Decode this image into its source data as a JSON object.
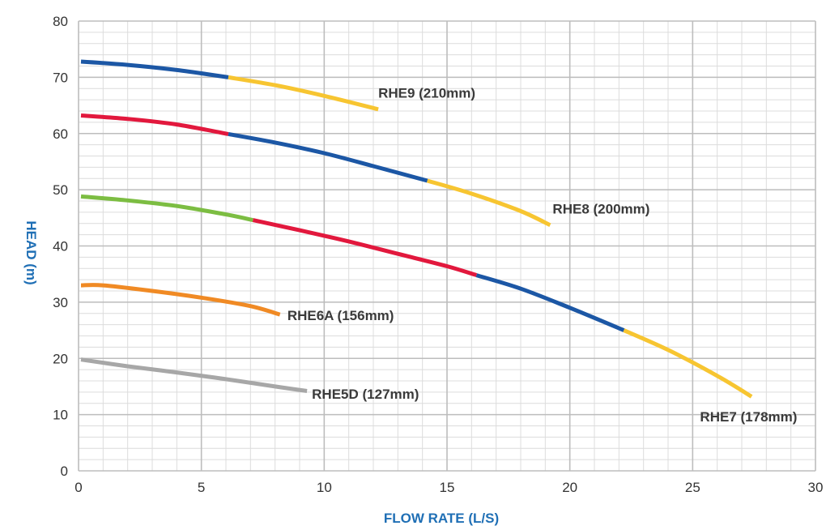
{
  "chart_data": {
    "type": "line",
    "xlabel": "FLOW RATE (L/S)",
    "ylabel": "HEAD (m)",
    "xlim": [
      0,
      30
    ],
    "ylim": [
      0,
      80
    ],
    "x_ticks": [
      0,
      5,
      10,
      15,
      20,
      25,
      30
    ],
    "y_ticks": [
      0,
      10,
      20,
      30,
      40,
      50,
      60,
      70,
      80
    ],
    "x_minor_step": 1,
    "y_minor_step": 2,
    "grid": true,
    "colors": {
      "axis_title": "#1f6fb5",
      "grid_major": "#bdbdbd",
      "grid_minor": "#dcdcdc",
      "blue": "#1c57a5",
      "yellow": "#f7c531",
      "red": "#e2183d",
      "green": "#7cbd42",
      "orange": "#f08a24",
      "gray": "#a7a7a7"
    },
    "series": [
      {
        "name": "RHE9 (210mm)",
        "label_at": [
          12.2,
          66.4
        ],
        "segments": [
          {
            "color": "blue",
            "points": [
              [
                0.1,
                72.8
              ],
              [
                2,
                72.2
              ],
              [
                4,
                71.3
              ],
              [
                6.1,
                70.0
              ]
            ]
          },
          {
            "color": "yellow",
            "points": [
              [
                6.1,
                70.0
              ],
              [
                8,
                68.6
              ],
              [
                10,
                66.7
              ],
              [
                12.2,
                64.3
              ]
            ]
          }
        ]
      },
      {
        "name": "RHE8 (200mm)",
        "label_at": [
          19.3,
          45.8
        ],
        "segments": [
          {
            "color": "red",
            "points": [
              [
                0.1,
                63.2
              ],
              [
                2,
                62.6
              ],
              [
                4,
                61.6
              ],
              [
                6.1,
                59.9
              ]
            ]
          },
          {
            "color": "blue",
            "points": [
              [
                6.1,
                59.9
              ],
              [
                8,
                58.4
              ],
              [
                10,
                56.5
              ],
              [
                12,
                54.2
              ],
              [
                14.2,
                51.6
              ]
            ]
          },
          {
            "color": "yellow",
            "points": [
              [
                14.2,
                51.6
              ],
              [
                16,
                49.3
              ],
              [
                18,
                46.2
              ],
              [
                19.2,
                43.7
              ]
            ]
          }
        ]
      },
      {
        "name": "RHE7 (178mm)",
        "label_at": [
          25.3,
          8.8
        ],
        "segments": [
          {
            "color": "green",
            "points": [
              [
                0.1,
                48.8
              ],
              [
                2,
                48.1
              ],
              [
                4,
                47.1
              ],
              [
                6,
                45.6
              ],
              [
                7.1,
                44.6
              ]
            ]
          },
          {
            "color": "red",
            "points": [
              [
                7.1,
                44.6
              ],
              [
                9,
                42.8
              ],
              [
                11,
                40.8
              ],
              [
                13,
                38.6
              ],
              [
                15,
                36.4
              ],
              [
                16.2,
                34.8
              ]
            ]
          },
          {
            "color": "blue",
            "points": [
              [
                16.2,
                34.8
              ],
              [
                18,
                32.4
              ],
              [
                20,
                29.0
              ],
              [
                22.2,
                25.0
              ]
            ]
          },
          {
            "color": "yellow",
            "points": [
              [
                22.2,
                25.0
              ],
              [
                24,
                21.5
              ],
              [
                26,
                16.9
              ],
              [
                27.4,
                13.2
              ]
            ]
          }
        ]
      },
      {
        "name": "RHE6A (156mm)",
        "label_at": [
          8.5,
          26.8
        ],
        "segments": [
          {
            "color": "orange",
            "points": [
              [
                0.1,
                33.0
              ],
              [
                1,
                33.0
              ],
              [
                3,
                32.0
              ],
              [
                5,
                30.8
              ],
              [
                7,
                29.3
              ],
              [
                8.2,
                27.8
              ]
            ]
          }
        ]
      },
      {
        "name": "RHE5D (127mm)",
        "label_at": [
          9.5,
          12.8
        ],
        "segments": [
          {
            "color": "gray",
            "points": [
              [
                0.1,
                19.8
              ],
              [
                2,
                18.6
              ],
              [
                4,
                17.5
              ],
              [
                6,
                16.3
              ],
              [
                8,
                15.0
              ],
              [
                9.3,
                14.2
              ]
            ]
          }
        ]
      }
    ]
  }
}
